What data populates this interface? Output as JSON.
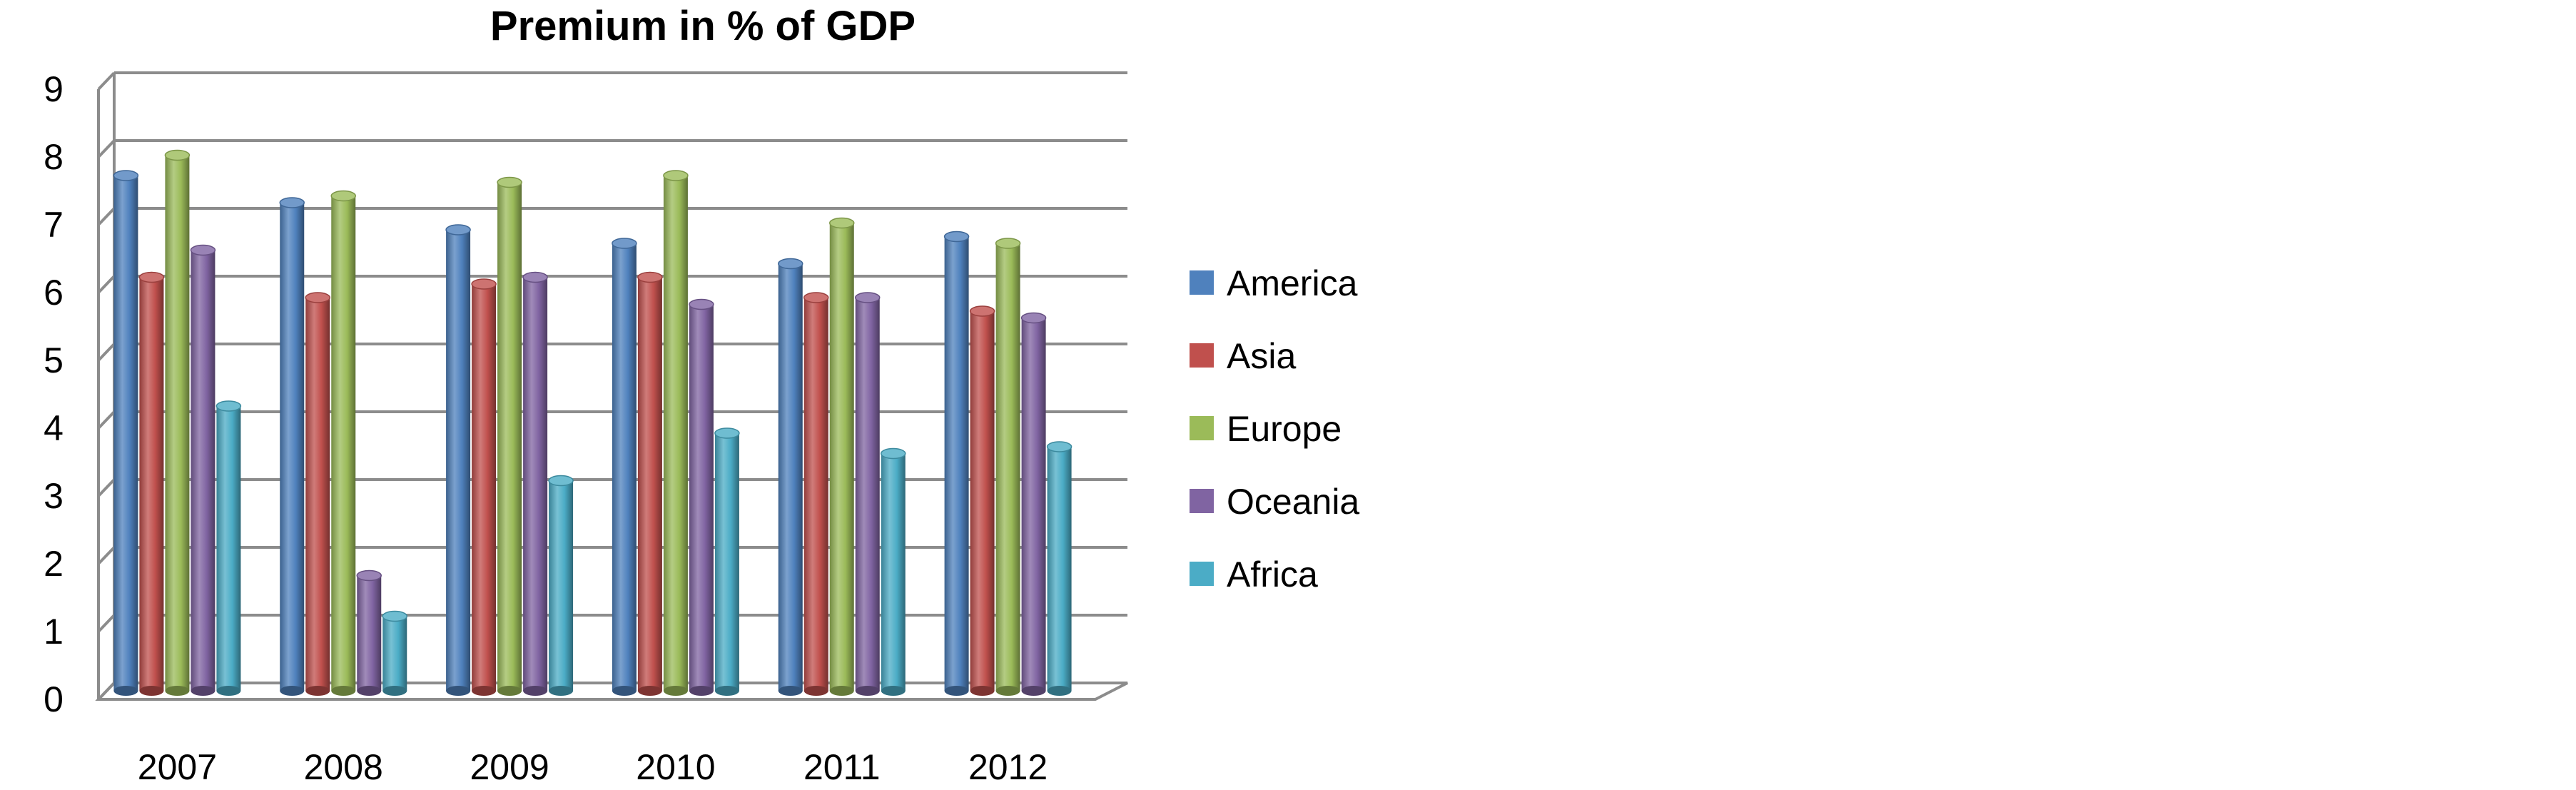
{
  "chart_data": {
    "type": "bar",
    "title": "Premium in % of GDP",
    "xlabel": "",
    "ylabel": "",
    "categories": [
      "2007",
      "2008",
      "2009",
      "2010",
      "2011",
      "2012"
    ],
    "ylim": [
      0,
      9
    ],
    "yticks": [
      "0",
      "1",
      "2",
      "3",
      "4",
      "5",
      "6",
      "7",
      "8",
      "9"
    ],
    "grid": true,
    "legend_position": "right",
    "series": [
      {
        "name": "America",
        "color": "#4F81BD",
        "values": [
          7.6,
          7.2,
          6.8,
          6.6,
          6.3,
          6.7
        ]
      },
      {
        "name": "Asia",
        "color": "#C0504D",
        "values": [
          6.1,
          5.8,
          6.0,
          6.1,
          5.8,
          5.6
        ]
      },
      {
        "name": "Europe",
        "color": "#9BBB59",
        "values": [
          7.9,
          7.3,
          7.5,
          7.6,
          6.9,
          6.6
        ]
      },
      {
        "name": "Oceania",
        "color": "#8064A2",
        "values": [
          6.5,
          1.7,
          6.1,
          5.7,
          5.8,
          5.5
        ]
      },
      {
        "name": "Africa",
        "color": "#4BACC6",
        "values": [
          4.2,
          1.1,
          3.1,
          3.8,
          3.5,
          3.6
        ]
      }
    ]
  }
}
